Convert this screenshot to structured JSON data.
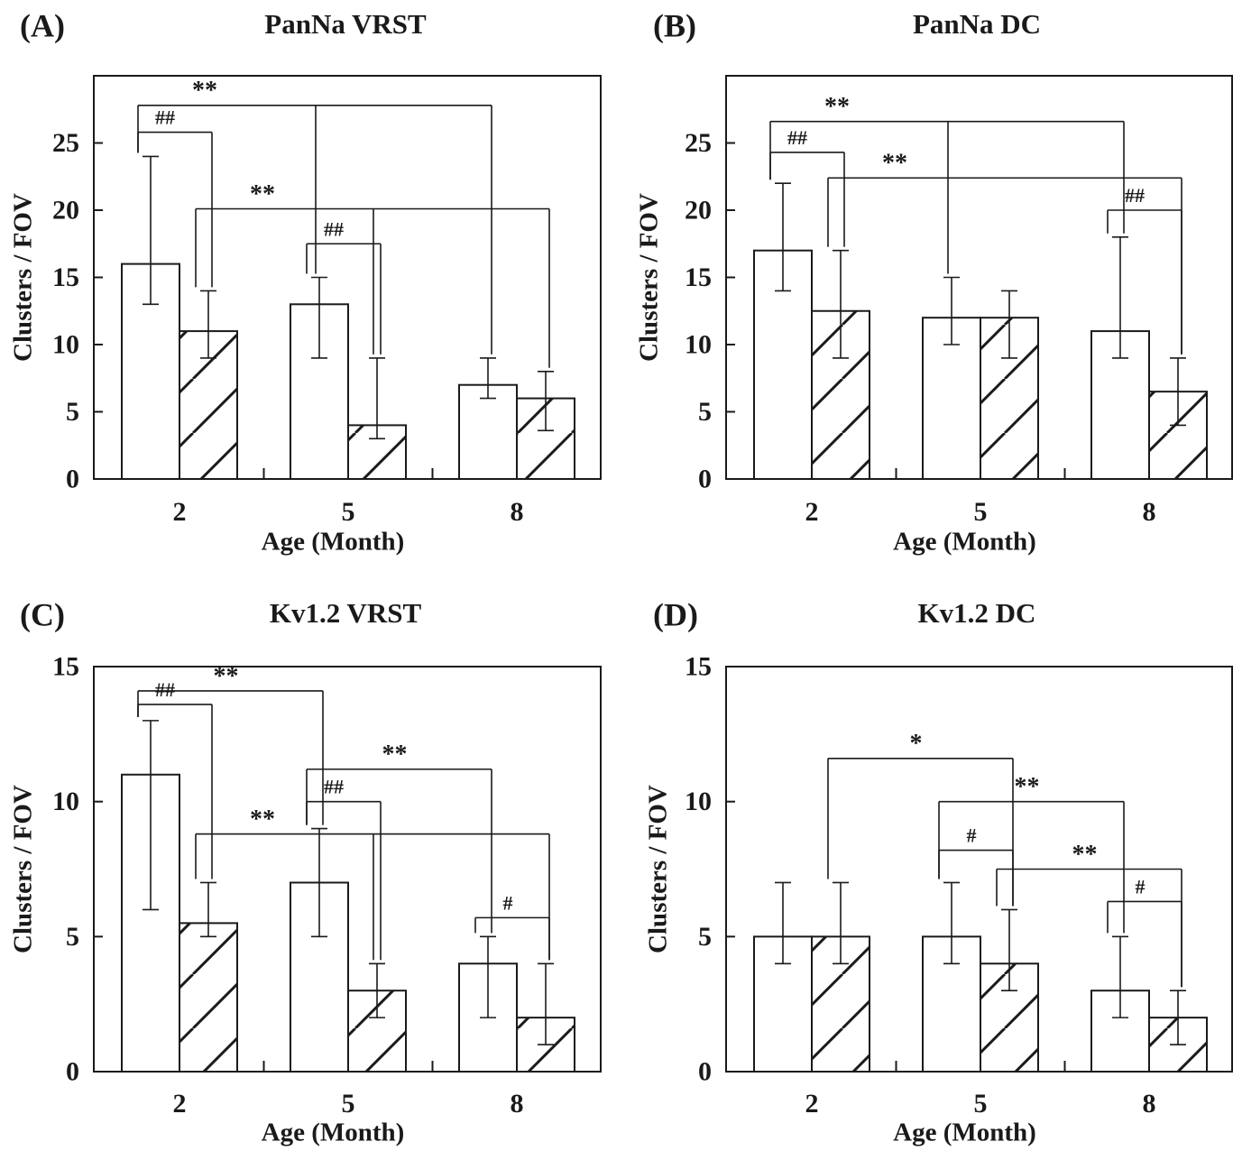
{
  "chart_data": [
    {
      "type": "bar",
      "panel_label": "(A)",
      "title": "PanNa VRST",
      "xlabel": "Age (Month)",
      "ylabel": "Clusters / FOV",
      "ylim": [
        0,
        30
      ],
      "yticks": [
        0,
        5,
        10,
        15,
        20,
        25
      ],
      "categories": [
        "2",
        "5",
        "8"
      ],
      "series": [
        {
          "pattern": "open",
          "values": [
            16,
            13,
            7
          ],
          "err_low": [
            13,
            9,
            6
          ],
          "err_high": [
            24,
            15,
            9
          ]
        },
        {
          "pattern": "hatched",
          "values": [
            11,
            4,
            6
          ],
          "err_low": [
            9,
            3,
            3.6
          ],
          "err_high": [
            14,
            9,
            8
          ]
        }
      ],
      "annotations": [
        {
          "label": "**",
          "from": [
            0,
            0
          ],
          "to": [
            2,
            0
          ],
          "mid": [
            1,
            0
          ],
          "y": 27.8
        },
        {
          "label": "##",
          "from": [
            0,
            0
          ],
          "to": [
            0,
            1
          ],
          "y": 25.8
        },
        {
          "label": "**",
          "from": [
            0,
            1
          ],
          "to": [
            2,
            1
          ],
          "mid": [
            1,
            1
          ],
          "y": 20.1
        },
        {
          "label": "##",
          "from": [
            1,
            0
          ],
          "to": [
            1,
            1
          ],
          "y": 17.5
        }
      ]
    },
    {
      "type": "bar",
      "panel_label": "(B)",
      "title": "PanNa DC",
      "xlabel": "Age (Month)",
      "ylabel": "Clusters / FOV",
      "ylim": [
        0,
        30
      ],
      "yticks": [
        0,
        5,
        10,
        15,
        20,
        25
      ],
      "categories": [
        "2",
        "5",
        "8"
      ],
      "series": [
        {
          "pattern": "open",
          "values": [
            17,
            12,
            11
          ],
          "err_low": [
            14,
            10,
            9
          ],
          "err_high": [
            22,
            15,
            18
          ]
        },
        {
          "pattern": "hatched",
          "values": [
            12.5,
            12,
            6.5
          ],
          "err_low": [
            9,
            9,
            4
          ],
          "err_high": [
            17,
            14,
            9
          ]
        }
      ],
      "annotations": [
        {
          "label": "**",
          "from": [
            0,
            0
          ],
          "to": [
            2,
            0
          ],
          "mid": [
            1,
            0
          ],
          "y": 26.6
        },
        {
          "label": "##",
          "from": [
            0,
            0
          ],
          "to": [
            0,
            1
          ],
          "y": 24.3
        },
        {
          "label": "**",
          "from": [
            0,
            1
          ],
          "to": [
            2,
            1
          ],
          "y": 22.4
        },
        {
          "label": "##",
          "from": [
            2,
            0
          ],
          "to": [
            2,
            1
          ],
          "y": 20
        }
      ]
    },
    {
      "type": "bar",
      "panel_label": "(C)",
      "title": "Kv1.2 VRST",
      "xlabel": "Age (Month)",
      "ylabel": "Clusters / FOV",
      "ylim": [
        0,
        15
      ],
      "yticks": [
        0,
        5,
        10,
        15
      ],
      "categories": [
        "2",
        "5",
        "8"
      ],
      "series": [
        {
          "pattern": "open",
          "values": [
            11,
            7,
            4
          ],
          "err_low": [
            6,
            5,
            2
          ],
          "err_high": [
            13,
            9,
            5
          ]
        },
        {
          "pattern": "hatched",
          "values": [
            5.5,
            3,
            2
          ],
          "err_low": [
            5,
            2,
            1
          ],
          "err_high": [
            7,
            4,
            4
          ]
        }
      ],
      "annotations": [
        {
          "label": "**",
          "from": [
            0,
            0
          ],
          "to": [
            1,
            0
          ],
          "y": 14.1
        },
        {
          "label": "##",
          "from": [
            0,
            0
          ],
          "to": [
            0,
            1
          ],
          "y": 13.6
        },
        {
          "label": "**",
          "from": [
            1,
            0
          ],
          "to": [
            2,
            0
          ],
          "y": 11.2
        },
        {
          "label": "##",
          "from": [
            1,
            0
          ],
          "to": [
            1,
            1
          ],
          "y": 10
        },
        {
          "label": "**",
          "from": [
            0,
            1
          ],
          "to": [
            2,
            1
          ],
          "mid": [
            1,
            1
          ],
          "y": 8.8
        },
        {
          "label": "#",
          "from": [
            2,
            0
          ],
          "to": [
            2,
            1
          ],
          "y": 5.7
        }
      ]
    },
    {
      "type": "bar",
      "panel_label": "(D)",
      "title": "Kv1.2 DC",
      "xlabel": "Age (Month)",
      "ylabel": "Clusters / FOV",
      "ylim": [
        0,
        15
      ],
      "yticks": [
        0,
        5,
        10,
        15
      ],
      "categories": [
        "2",
        "5",
        "8"
      ],
      "series": [
        {
          "pattern": "open",
          "values": [
            5,
            5,
            3
          ],
          "err_low": [
            4,
            4,
            2
          ],
          "err_high": [
            7,
            7,
            5
          ]
        },
        {
          "pattern": "hatched",
          "values": [
            5,
            4,
            2
          ],
          "err_low": [
            4,
            3,
            1
          ],
          "err_high": [
            7,
            6,
            3
          ]
        }
      ],
      "annotations": [
        {
          "label": "*",
          "from": [
            0,
            1
          ],
          "to": [
            1,
            1
          ],
          "y": 11.6
        },
        {
          "label": "**",
          "from": [
            1,
            0
          ],
          "to": [
            2,
            0
          ],
          "y": 10
        },
        {
          "label": "#",
          "from": [
            1,
            0
          ],
          "to": [
            1,
            1
          ],
          "y": 8.2
        },
        {
          "label": "**",
          "from": [
            1,
            1
          ],
          "to": [
            2,
            1
          ],
          "y": 7.5
        },
        {
          "label": "#",
          "from": [
            2,
            0
          ],
          "to": [
            2,
            1
          ],
          "y": 6.3
        }
      ]
    }
  ]
}
